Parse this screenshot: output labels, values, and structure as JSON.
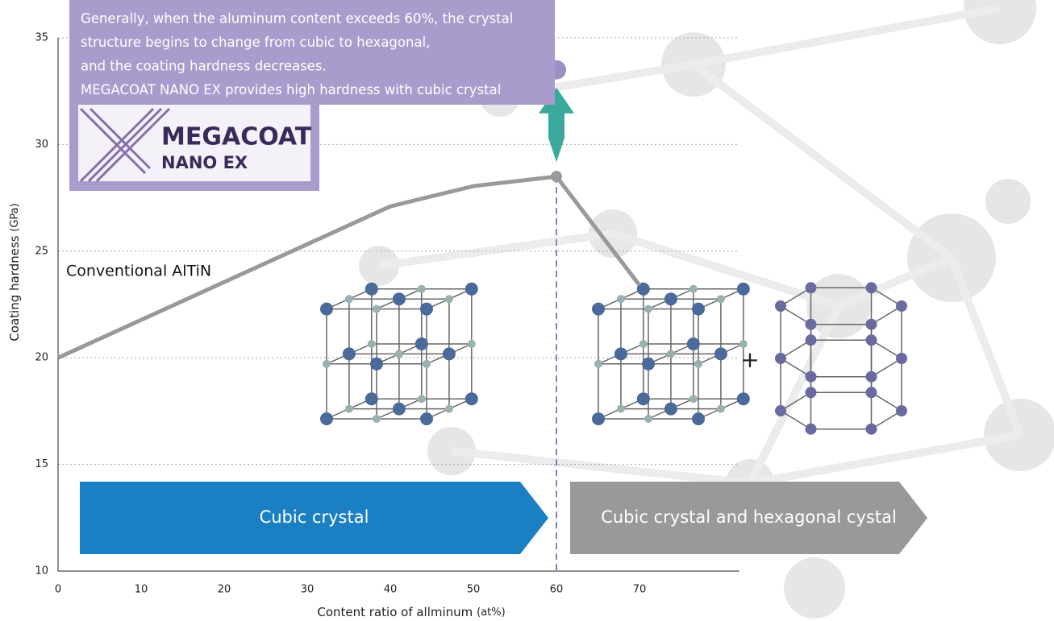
{
  "chart_data": {
    "type": "line",
    "y_label": "Coating hardness",
    "y_unit": "(GPa)",
    "x_label": "Content ratio of allminum",
    "x_unit": "(at%)",
    "callout": [
      "Generally, when the aluminum content exceeds 60%, the crystal",
      "structure begins to change from cubic to hexagonal,",
      "and the coating hardness decreases.",
      "MEGACOAT NANO EX provides high hardness with cubic crystal"
    ],
    "logo": [
      "MEGACOAT",
      "NANO EX"
    ],
    "bands": [
      "Cubic crystal",
      "Cubic crystal and hexagonal cystal"
    ],
    "xlim": [
      0,
      82
    ],
    "xticks": [
      0,
      10,
      20,
      30,
      40,
      50,
      60,
      70
    ],
    "ylim": [
      10,
      35
    ],
    "yticks": [
      10,
      15,
      20,
      25,
      30,
      35
    ],
    "grid": true,
    "series": [
      {
        "name": "Conventional AlTiN",
        "color": "#999999",
        "x": [
          0,
          40,
          50,
          60,
          70
        ],
        "values": [
          20,
          27.1,
          28.05,
          28.5,
          23.4
        ]
      },
      {
        "color": "#9b8fc6",
        "x": [
          60
        ],
        "values": [
          33.5
        ]
      }
    ]
  }
}
